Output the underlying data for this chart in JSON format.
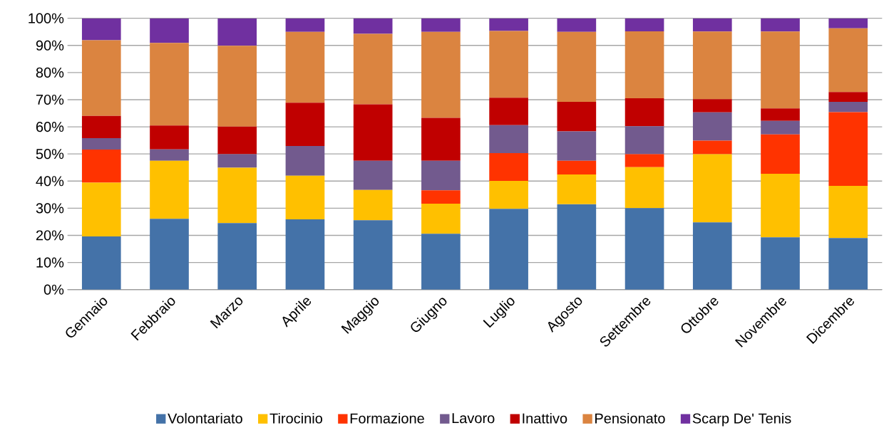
{
  "chart_data": {
    "type": "bar",
    "stacked": true,
    "categories": [
      "Gennaio",
      "Febbraio",
      "Marzo",
      "Aprile",
      "Maggio",
      "Giugno",
      "Luglio",
      "Agosto",
      "Settembre",
      "Ottobre",
      "Novembre",
      "Dicembre"
    ],
    "series": [
      {
        "name": "Volontariato",
        "color": "#4472a8",
        "values": [
          19.6,
          26.1,
          24.5,
          25.9,
          25.6,
          20.6,
          29.8,
          31.5,
          30.0,
          24.8,
          19.3,
          19.0
        ]
      },
      {
        "name": "Tirocinio",
        "color": "#ffc000",
        "values": [
          19.8,
          21.4,
          20.4,
          16.1,
          11.1,
          11.1,
          10.3,
          10.9,
          15.1,
          25.1,
          23.4,
          19.2
        ]
      },
      {
        "name": "Formazione",
        "color": "#ff3300",
        "values": [
          12.2,
          0,
          0,
          0,
          0,
          4.9,
          10.2,
          5.1,
          4.8,
          5.0,
          14.5,
          27.2
        ]
      },
      {
        "name": "Lavoro",
        "color": "#725a8e",
        "values": [
          4.2,
          4.2,
          5.0,
          10.9,
          10.8,
          10.9,
          10.3,
          10.8,
          10.3,
          10.4,
          5.0,
          3.8
        ]
      },
      {
        "name": "Inattivo",
        "color": "#c00000",
        "values": [
          8.2,
          8.8,
          10.2,
          16.0,
          20.8,
          15.8,
          10.1,
          10.9,
          10.3,
          4.9,
          4.6,
          3.6
        ]
      },
      {
        "name": "Pensionato",
        "color": "#db8440",
        "values": [
          27.9,
          30.4,
          29.8,
          26.1,
          26.0,
          31.7,
          24.6,
          25.8,
          24.7,
          24.9,
          28.3,
          23.5
        ]
      },
      {
        "name": "Scarp De' Tenis",
        "color": "#7030a0",
        "values": [
          8.1,
          9.1,
          10.1,
          5.0,
          5.7,
          5.0,
          4.7,
          5.0,
          4.8,
          4.9,
          4.9,
          3.7
        ]
      }
    ],
    "ylim": [
      0,
      100
    ],
    "yticks": [
      {
        "value": 0,
        "label": "0%"
      },
      {
        "value": 10,
        "label": "10%"
      },
      {
        "value": 20,
        "label": "20%"
      },
      {
        "value": 30,
        "label": "30%"
      },
      {
        "value": 40,
        "label": "40%"
      },
      {
        "value": 50,
        "label": "50%"
      },
      {
        "value": 60,
        "label": "60%"
      },
      {
        "value": 70,
        "label": "70%"
      },
      {
        "value": 80,
        "label": "80%"
      },
      {
        "value": 90,
        "label": "90%"
      },
      {
        "value": 100,
        "label": "100%"
      }
    ],
    "grid": "y",
    "legend": "bottom"
  }
}
